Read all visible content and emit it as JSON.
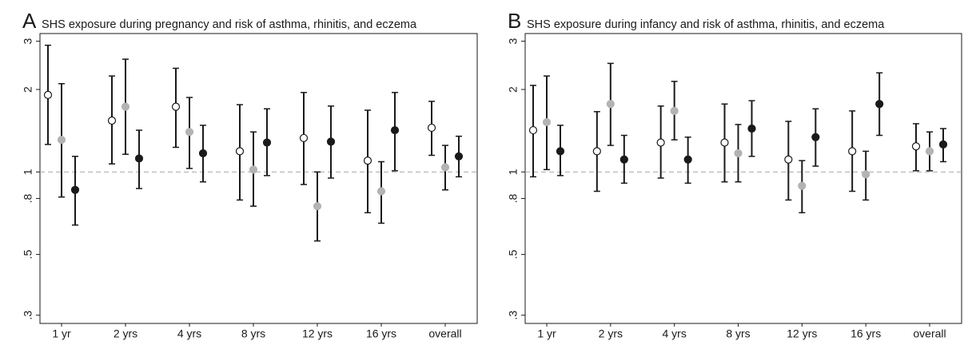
{
  "chart_data": [
    {
      "type": "errorbar",
      "panel": "A",
      "title": "SHS exposure during pregnancy and risk of asthma, rhinitis, and eczema",
      "categories": [
        "1 yr",
        "2 yrs",
        "4 yrs",
        "8 yrs",
        "12 yrs",
        "16 yrs",
        "overall"
      ],
      "log_scale": true,
      "ylim": [
        0.28,
        3.2
      ],
      "yticks": [
        {
          "value": 0.3,
          "label": ".3"
        },
        {
          "value": 0.5,
          "label": ".5"
        },
        {
          "value": 0.8,
          "label": ".8"
        },
        1,
        2,
        3
      ],
      "reference_line": 1,
      "series": [
        {
          "marker_fill": "#ffffff",
          "marker_edge": "#1a1a1a",
          "values": [
            1.91,
            1.54,
            1.73,
            1.19,
            1.33,
            1.1,
            1.45
          ],
          "lower": [
            1.26,
            1.07,
            1.23,
            0.79,
            0.9,
            0.71,
            1.15
          ],
          "upper": [
            2.9,
            2.24,
            2.39,
            1.76,
            1.95,
            1.68,
            1.81
          ]
        },
        {
          "marker_fill": "#b3b3b3",
          "marker_edge": "#b3b3b3",
          "values": [
            1.31,
            1.73,
            1.4,
            1.02,
            0.75,
            0.85,
            1.04
          ],
          "lower": [
            0.81,
            1.16,
            1.03,
            0.75,
            0.56,
            0.65,
            0.86
          ],
          "upper": [
            2.1,
            2.58,
            1.87,
            1.4,
            1.0,
            1.09,
            1.25
          ]
        },
        {
          "marker_fill": "#1a1a1a",
          "marker_edge": "#1a1a1a",
          "values": [
            0.86,
            1.12,
            1.17,
            1.28,
            1.29,
            1.42,
            1.14
          ],
          "lower": [
            0.64,
            0.87,
            0.92,
            0.97,
            0.95,
            1.01,
            0.96
          ],
          "upper": [
            1.14,
            1.42,
            1.48,
            1.7,
            1.74,
            1.95,
            1.35
          ]
        }
      ]
    },
    {
      "type": "errorbar",
      "panel": "B",
      "title": "SHS exposure during infancy and risk of asthma, rhinitis, and eczema",
      "categories": [
        "1 yr",
        "2 yrs",
        "4 yrs",
        "8 yrs",
        "12 yrs",
        "16 yrs",
        "overall"
      ],
      "log_scale": true,
      "ylim": [
        0.28,
        3.2
      ],
      "yticks": [
        {
          "value": 0.3,
          "label": ".3"
        },
        {
          "value": 0.5,
          "label": ".5"
        },
        {
          "value": 0.8,
          "label": ".8"
        },
        1,
        2,
        3
      ],
      "reference_line": 1,
      "series": [
        {
          "marker_fill": "#ffffff",
          "marker_edge": "#1a1a1a",
          "values": [
            1.42,
            1.19,
            1.28,
            1.28,
            1.11,
            1.19,
            1.24
          ],
          "lower": [
            0.96,
            0.85,
            0.95,
            0.92,
            0.79,
            0.85,
            1.01
          ],
          "upper": [
            2.07,
            1.66,
            1.74,
            1.77,
            1.53,
            1.67,
            1.5
          ]
        },
        {
          "marker_fill": "#b3b3b3",
          "marker_edge": "#b3b3b3",
          "values": [
            1.52,
            1.77,
            1.67,
            1.17,
            0.89,
            0.98,
            1.19
          ],
          "lower": [
            1.02,
            1.25,
            1.31,
            0.92,
            0.71,
            0.79,
            1.01
          ],
          "upper": [
            2.24,
            2.49,
            2.14,
            1.49,
            1.1,
            1.19,
            1.4
          ]
        },
        {
          "marker_fill": "#1a1a1a",
          "marker_edge": "#1a1a1a",
          "values": [
            1.19,
            1.11,
            1.11,
            1.44,
            1.34,
            1.77,
            1.26
          ],
          "lower": [
            0.97,
            0.91,
            0.91,
            1.14,
            1.05,
            1.36,
            1.09
          ],
          "upper": [
            1.48,
            1.36,
            1.34,
            1.82,
            1.7,
            2.3,
            1.44
          ]
        }
      ]
    }
  ]
}
